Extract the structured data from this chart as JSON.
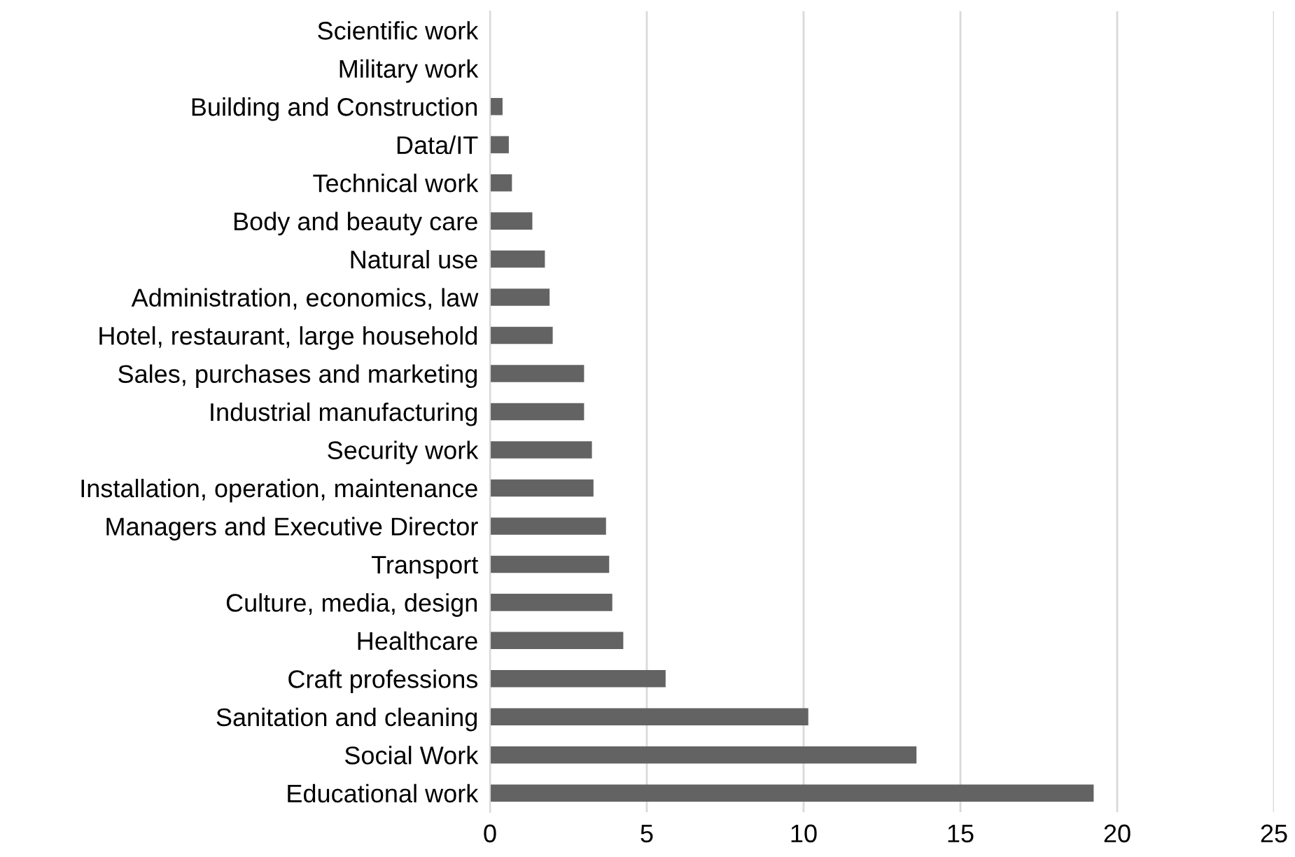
{
  "chart_data": {
    "type": "bar",
    "orientation": "horizontal",
    "categories": [
      "Scientific work",
      "Military work",
      "Building and Construction",
      "Data/IT",
      "Technical work",
      "Body and beauty care",
      "Natural use",
      "Administration, economics, law",
      "Hotel, restaurant, large household",
      "Sales, purchases and marketing",
      "Industrial manufacturing",
      "Security work",
      "Installation, operation, maintenance",
      "Managers and Executive Director",
      "Transport",
      "Culture, media, design",
      "Healthcare",
      "Craft professions",
      "Sanitation and cleaning",
      "Social Work",
      "Educational work"
    ],
    "values": [
      0,
      0,
      0.4,
      0.6,
      0.7,
      1.35,
      1.75,
      1.9,
      2.0,
      3.0,
      3.0,
      3.25,
      3.3,
      3.7,
      3.8,
      3.9,
      4.25,
      5.6,
      10.15,
      13.6,
      19.25
    ],
    "color": "#636363",
    "xlim": [
      0,
      25
    ],
    "xticks": [
      0,
      5,
      10,
      15,
      20,
      25
    ],
    "grid": "x",
    "legend": false
  }
}
